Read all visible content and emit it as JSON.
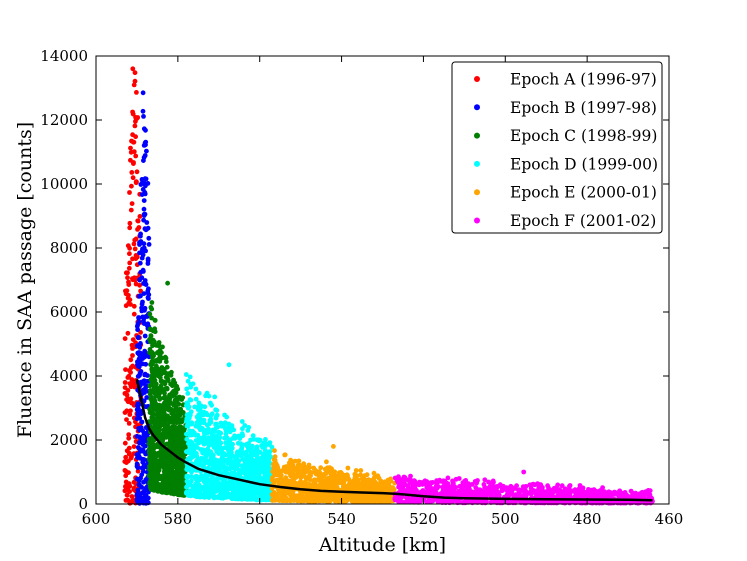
{
  "chart_data": {
    "type": "scatter",
    "title": "",
    "xlabel": "Altitude [km]",
    "ylabel": "Fluence in SAA passage [counts]",
    "xlim": [
      600,
      460
    ],
    "ylim": [
      0,
      14000
    ],
    "x_reversed": true,
    "xticks": [
      600,
      580,
      560,
      540,
      520,
      500,
      480,
      460
    ],
    "yticks": [
      0,
      2000,
      4000,
      6000,
      8000,
      10000,
      12000,
      14000
    ],
    "grid": false,
    "legend_position": "top-right",
    "series": [
      {
        "name": "Epoch A (1996-97)",
        "color": "#ff0000",
        "x_range": [
          593,
          589
        ],
        "peak_fluence": 13600
      },
      {
        "name": "Epoch B (1997-98)",
        "color": "#0000ff",
        "x_range": [
          590,
          587
        ],
        "peak_fluence": 12850
      },
      {
        "name": "Epoch C (1998-99)",
        "color": "#007f00",
        "x_range": [
          587,
          578
        ],
        "peak_fluence": 6900
      },
      {
        "name": "Epoch D (1999-00)",
        "color": "#00ffff",
        "x_range": [
          578,
          557
        ],
        "peak_fluence": 4350
      },
      {
        "name": "Epoch E (2000-01)",
        "color": "#ffa500",
        "x_range": [
          557,
          527
        ],
        "peak_fluence": 1800
      },
      {
        "name": "Epoch F (2001-02)",
        "color": "#ff00ff",
        "x_range": [
          527,
          464
        ],
        "peak_fluence": 1000
      }
    ],
    "mean_curve": {
      "color": "#000000",
      "x": [
        590,
        589,
        588,
        587,
        586,
        584,
        582,
        580,
        578,
        575,
        570,
        565,
        560,
        555,
        550,
        545,
        540,
        535,
        530,
        527,
        525,
        520,
        515,
        510,
        500,
        490,
        480,
        470,
        464
      ],
      "y": [
        3900,
        3300,
        2700,
        2350,
        2150,
        1850,
        1650,
        1450,
        1300,
        1100,
        900,
        760,
        620,
        530,
        460,
        410,
        380,
        360,
        340,
        320,
        300,
        240,
        200,
        180,
        160,
        150,
        140,
        130,
        120
      ]
    }
  }
}
